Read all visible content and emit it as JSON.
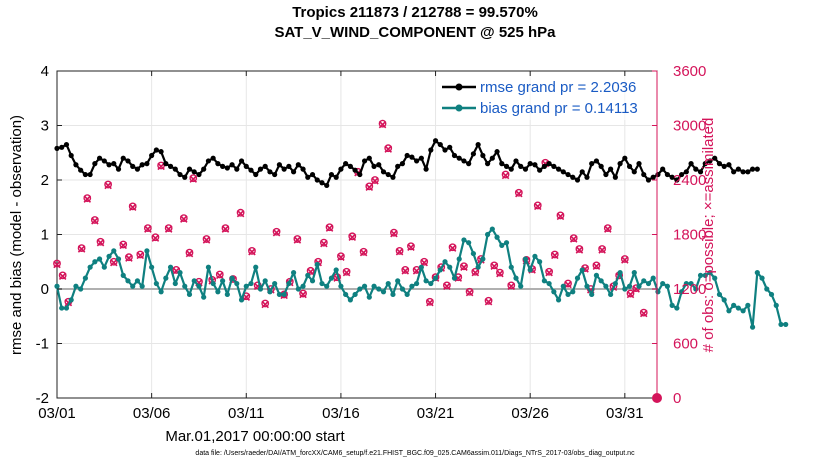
{
  "chart_data": {
    "type": "line",
    "title": "Tropics 211873 / 212788 = 99.570%",
    "subtitle": "SAT_V_WIND_COMPONENT @ 525 hPa",
    "xlabel": "Mar.01,2017 00:00:00 start",
    "ylabel": "rmse and bias (model - observation)",
    "y2label": "# of obs: o=possible; ×=assimilated",
    "footer": "data file: /Users/raeder/DAI/ATM_forcXX/CAM6_setup/f.e21.FHIST_BGC.f09_025.CAM6assim.011/Diags_NTrS_2017-03/obs_diag_output.nc",
    "xlim": [
      1,
      32.7
    ],
    "ylim": [
      -2,
      4
    ],
    "y2lim": [
      0,
      3600
    ],
    "xticks": [
      1,
      6,
      11,
      16,
      21,
      26,
      31
    ],
    "xtick_labels": [
      "03/01",
      "03/06",
      "03/11",
      "03/16",
      "03/21",
      "03/26",
      "03/31"
    ],
    "yticks": [
      -2,
      -1,
      0,
      1,
      2,
      3,
      4
    ],
    "ytick_labels": [
      "-2",
      "-1",
      "0",
      "1",
      "2",
      "3",
      "4"
    ],
    "y2ticks": [
      0,
      600,
      1200,
      1800,
      2400,
      3000,
      3600
    ],
    "y2tick_labels": [
      "0",
      "600",
      "1200",
      "1800",
      "2400",
      "3000",
      "3600"
    ],
    "grid": true,
    "legend_position": "top-right",
    "series": [
      {
        "name": "rmse grand pr = 2.2036",
        "color": "#000000",
        "axis": "left",
        "start": 1.0,
        "step": 0.25,
        "values": [
          2.58,
          2.6,
          2.65,
          2.45,
          2.28,
          2.18,
          2.1,
          2.1,
          2.3,
          2.4,
          2.35,
          2.28,
          2.3,
          2.2,
          2.4,
          2.35,
          2.25,
          2.2,
          2.28,
          2.3,
          2.45,
          2.55,
          2.52,
          2.3,
          2.25,
          2.2,
          2.1,
          2.05,
          2.2,
          2.15,
          2.1,
          2.2,
          2.35,
          2.4,
          2.3,
          2.25,
          2.22,
          2.28,
          2.2,
          2.35,
          2.25,
          2.18,
          2.1,
          2.2,
          2.25,
          2.15,
          2.1,
          2.28,
          2.2,
          2.25,
          2.15,
          2.28,
          2.2,
          2.05,
          2.1,
          2.0,
          1.95,
          1.9,
          2.1,
          2.05,
          2.2,
          2.3,
          2.25,
          2.18,
          2.1,
          2.35,
          2.4,
          2.25,
          2.28,
          2.15,
          2.1,
          2.05,
          2.25,
          2.3,
          2.45,
          2.42,
          2.35,
          2.4,
          2.2,
          2.55,
          2.72,
          2.65,
          2.55,
          2.6,
          2.45,
          2.4,
          2.35,
          2.3,
          2.48,
          2.65,
          2.45,
          2.3,
          2.4,
          2.52,
          2.3,
          2.25,
          2.2,
          2.35,
          2.25,
          2.2,
          2.3,
          2.28,
          2.18,
          2.25,
          2.3,
          2.25,
          2.2,
          2.15,
          2.1,
          2.05,
          2.0,
          2.15,
          2.05,
          2.3,
          2.35,
          2.25,
          2.1,
          2.2,
          2.05,
          2.3,
          2.4,
          2.25,
          2.15,
          2.3,
          2.1,
          2.0,
          2.05,
          2.1,
          2.2,
          2.1,
          2.05,
          2.0,
          2.1,
          2.15,
          2.3,
          2.2,
          2.15,
          2.3,
          2.35,
          2.4,
          2.3,
          2.25,
          2.28,
          2.15,
          2.2,
          2.15,
          2.15,
          2.2,
          2.2
        ]
      },
      {
        "name": "bias grand pr = 0.14113",
        "color": "#0f8080",
        "axis": "left",
        "start": 1.0,
        "step": 0.25,
        "values": [
          0.05,
          -0.35,
          -0.35,
          -0.2,
          0.05,
          0.0,
          0.2,
          0.4,
          0.5,
          0.55,
          0.4,
          0.6,
          0.7,
          0.55,
          0.25,
          0.15,
          0.05,
          0.15,
          0.05,
          0.7,
          0.4,
          0.1,
          -0.05,
          0.2,
          0.4,
          0.1,
          0.3,
          0.05,
          -0.1,
          0.15,
          0.05,
          -0.15,
          0.4,
          0.1,
          -0.05,
          0.15,
          -0.1,
          0.2,
          0.1,
          -0.2,
          0.05,
          0.1,
          0.4,
          0.0,
          0.15,
          -0.05,
          0.1,
          -0.1,
          -0.1,
          0.1,
          0.3,
          0.0,
          0.05,
          0.25,
          0.15,
          0.45,
          0.1,
          0.05,
          0.2,
          0.35,
          0.05,
          -0.1,
          -0.2,
          -0.1,
          0.0,
          0.05,
          -0.15,
          0.05,
          0.0,
          -0.05,
          0.1,
          -0.1,
          0.15,
          0.0,
          -0.1,
          0.05,
          0.1,
          0.4,
          0.15,
          0.1,
          0.2,
          0.35,
          0.5,
          0.4,
          0.2,
          0.55,
          0.9,
          0.85,
          0.65,
          0.4,
          0.55,
          1.0,
          1.1,
          0.95,
          0.8,
          0.85,
          0.4,
          0.2,
          0.05,
          0.55,
          0.35,
          0.6,
          0.5,
          0.15,
          0.1,
          -0.05,
          -0.2,
          0.05,
          -0.1,
          -0.05,
          0.2,
          0.35,
          0.05,
          -0.1,
          0.25,
          0.15,
          0.05,
          -0.1,
          0.1,
          0.3,
          0.0,
          0.05,
          0.3,
          0.05,
          0.15,
          0.1,
          0.2,
          -0.05,
          0.1,
          0.05,
          -0.3,
          -0.35,
          -0.05,
          0.1,
          0.1,
          0.0,
          0.25,
          0.25,
          0.3,
          0.2,
          -0.1,
          -0.2,
          -0.4,
          -0.3,
          -0.35,
          -0.4,
          -0.3,
          -0.7,
          0.3,
          0.2,
          0.0,
          -0.1,
          -0.3,
          -0.65,
          -0.65
        ]
      }
    ],
    "obs_possible": [
      [
        1.0,
        1480
      ],
      [
        1.3,
        1350
      ],
      [
        1.6,
        1060
      ],
      [
        2.3,
        1650
      ],
      [
        2.6,
        2200
      ],
      [
        3.0,
        1960
      ],
      [
        3.3,
        1720
      ],
      [
        3.7,
        2350
      ],
      [
        4.0,
        1500
      ],
      [
        4.5,
        1690
      ],
      [
        4.8,
        1550
      ],
      [
        5.0,
        2110
      ],
      [
        5.4,
        1580
      ],
      [
        5.8,
        1870
      ],
      [
        6.2,
        1770
      ],
      [
        6.5,
        2560
      ],
      [
        6.9,
        1870
      ],
      [
        7.3,
        1410
      ],
      [
        7.7,
        1980
      ],
      [
        8.0,
        1600
      ],
      [
        8.2,
        2420
      ],
      [
        8.5,
        1280
      ],
      [
        8.9,
        1750
      ],
      [
        9.2,
        1300
      ],
      [
        9.6,
        1360
      ],
      [
        9.9,
        1870
      ],
      [
        10.3,
        1310
      ],
      [
        10.7,
        2040
      ],
      [
        11.0,
        1120
      ],
      [
        11.3,
        1620
      ],
      [
        11.6,
        1240
      ],
      [
        12.0,
        1040
      ],
      [
        12.3,
        1200
      ],
      [
        12.6,
        1830
      ],
      [
        13.0,
        1140
      ],
      [
        13.3,
        1280
      ],
      [
        13.7,
        1750
      ],
      [
        14.0,
        1150
      ],
      [
        14.4,
        1400
      ],
      [
        14.8,
        1500
      ],
      [
        15.1,
        1710
      ],
      [
        15.4,
        1880
      ],
      [
        15.8,
        1330
      ],
      [
        16.0,
        1560
      ],
      [
        16.3,
        1390
      ],
      [
        16.6,
        1780
      ],
      [
        16.9,
        2490
      ],
      [
        17.2,
        1610
      ],
      [
        17.5,
        2330
      ],
      [
        17.8,
        2400
      ],
      [
        18.2,
        3020
      ],
      [
        18.5,
        2750
      ],
      [
        18.8,
        1820
      ],
      [
        19.1,
        1620
      ],
      [
        19.4,
        1410
      ],
      [
        19.7,
        1670
      ],
      [
        20.0,
        1410
      ],
      [
        20.4,
        1500
      ],
      [
        20.7,
        1060
      ],
      [
        21.0,
        1330
      ],
      [
        21.3,
        1440
      ],
      [
        21.6,
        1240
      ],
      [
        21.9,
        1660
      ],
      [
        22.2,
        1330
      ],
      [
        22.5,
        1450
      ],
      [
        22.8,
        1170
      ],
      [
        23.1,
        1390
      ],
      [
        23.4,
        1530
      ],
      [
        23.8,
        1070
      ],
      [
        24.1,
        1460
      ],
      [
        24.4,
        1380
      ],
      [
        24.7,
        2460
      ],
      [
        25.0,
        1240
      ],
      [
        25.4,
        2260
      ],
      [
        25.8,
        1520
      ],
      [
        26.1,
        1420
      ],
      [
        26.4,
        2120
      ],
      [
        26.8,
        2590
      ],
      [
        27.0,
        1390
      ],
      [
        27.3,
        1580
      ],
      [
        27.6,
        2010
      ],
      [
        28.0,
        1260
      ],
      [
        28.3,
        1760
      ],
      [
        28.6,
        1640
      ],
      [
        28.9,
        1430
      ],
      [
        29.2,
        1200
      ],
      [
        29.5,
        1460
      ],
      [
        29.8,
        1640
      ],
      [
        30.1,
        1870
      ],
      [
        30.4,
        1230
      ],
      [
        30.7,
        1350
      ],
      [
        31.0,
        1530
      ],
      [
        31.3,
        1150
      ],
      [
        31.6,
        1210
      ],
      [
        32.0,
        940
      ]
    ],
    "obs_assimilated": [
      [
        1.0,
        1470
      ],
      [
        1.3,
        1340
      ],
      [
        1.6,
        1050
      ],
      [
        2.3,
        1640
      ],
      [
        2.6,
        2190
      ],
      [
        3.0,
        1950
      ],
      [
        3.3,
        1710
      ],
      [
        3.7,
        2340
      ],
      [
        4.0,
        1490
      ],
      [
        4.5,
        1680
      ],
      [
        4.8,
        1540
      ],
      [
        5.0,
        2100
      ],
      [
        5.4,
        1570
      ],
      [
        5.8,
        1860
      ],
      [
        6.2,
        1760
      ],
      [
        6.5,
        2550
      ],
      [
        6.9,
        1860
      ],
      [
        7.3,
        1400
      ],
      [
        7.7,
        1970
      ],
      [
        8.0,
        1590
      ],
      [
        8.2,
        2410
      ],
      [
        8.5,
        1270
      ],
      [
        8.9,
        1740
      ],
      [
        9.2,
        1290
      ],
      [
        9.6,
        1350
      ],
      [
        9.9,
        1860
      ],
      [
        10.3,
        1300
      ],
      [
        10.7,
        2030
      ],
      [
        11.0,
        1110
      ],
      [
        11.3,
        1610
      ],
      [
        11.6,
        1230
      ],
      [
        12.0,
        1030
      ],
      [
        12.3,
        1190
      ],
      [
        12.6,
        1820
      ],
      [
        13.0,
        1130
      ],
      [
        13.3,
        1270
      ],
      [
        13.7,
        1740
      ],
      [
        14.0,
        1140
      ],
      [
        14.4,
        1390
      ],
      [
        14.8,
        1490
      ],
      [
        15.1,
        1700
      ],
      [
        15.4,
        1870
      ],
      [
        15.8,
        1320
      ],
      [
        16.0,
        1550
      ],
      [
        16.3,
        1380
      ],
      [
        16.6,
        1770
      ],
      [
        16.9,
        2480
      ],
      [
        17.2,
        1600
      ],
      [
        17.5,
        2320
      ],
      [
        17.8,
        2390
      ],
      [
        18.2,
        3010
      ],
      [
        18.5,
        2740
      ],
      [
        18.8,
        1810
      ],
      [
        19.1,
        1610
      ],
      [
        19.4,
        1400
      ],
      [
        19.7,
        1660
      ],
      [
        20.0,
        1400
      ],
      [
        20.4,
        1490
      ],
      [
        20.7,
        1050
      ],
      [
        21.0,
        1320
      ],
      [
        21.3,
        1430
      ],
      [
        21.6,
        1230
      ],
      [
        21.9,
        1650
      ],
      [
        22.2,
        1320
      ],
      [
        22.5,
        1440
      ],
      [
        22.8,
        1160
      ],
      [
        23.1,
        1380
      ],
      [
        23.4,
        1520
      ],
      [
        23.8,
        1060
      ],
      [
        24.1,
        1450
      ],
      [
        24.4,
        1370
      ],
      [
        24.7,
        2450
      ],
      [
        25.0,
        1230
      ],
      [
        25.4,
        2250
      ],
      [
        25.8,
        1510
      ],
      [
        26.1,
        1410
      ],
      [
        26.4,
        2110
      ],
      [
        26.8,
        2580
      ],
      [
        27.0,
        1380
      ],
      [
        27.3,
        1570
      ],
      [
        27.6,
        2000
      ],
      [
        28.0,
        1250
      ],
      [
        28.3,
        1750
      ],
      [
        28.6,
        1630
      ],
      [
        28.9,
        1420
      ],
      [
        29.2,
        1190
      ],
      [
        29.5,
        1450
      ],
      [
        29.8,
        1630
      ],
      [
        30.1,
        1860
      ],
      [
        30.4,
        1220
      ],
      [
        30.7,
        1340
      ],
      [
        31.0,
        1520
      ],
      [
        31.3,
        1140
      ],
      [
        31.6,
        1200
      ],
      [
        32.0,
        930
      ]
    ]
  }
}
